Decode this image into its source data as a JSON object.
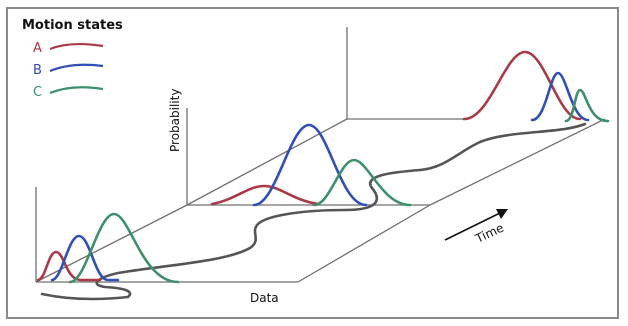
{
  "legend": {
    "title": "Motion states",
    "items": [
      {
        "label": "A",
        "color": "#a83a45"
      },
      {
        "label": "B",
        "color": "#3050b8"
      },
      {
        "label": "C",
        "color": "#3e8f6c"
      }
    ]
  },
  "axes": {
    "probability_label": "Probability",
    "data_label": "Data",
    "time_label": "Time"
  },
  "colors": {
    "frame": "#8a8a8a",
    "axis": "#6f6f6f",
    "trajectory": "#555555"
  }
}
